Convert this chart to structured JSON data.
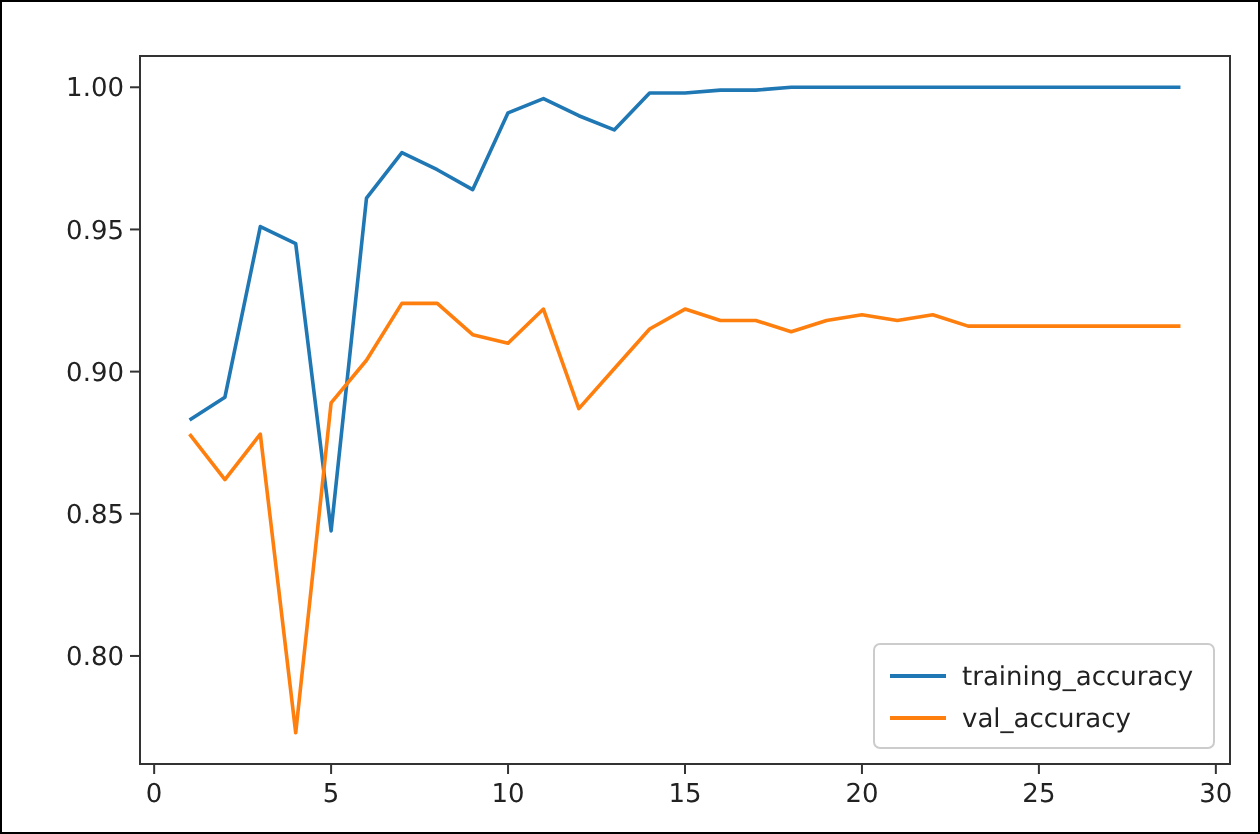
{
  "chart_data": {
    "type": "line",
    "x": [
      1,
      2,
      3,
      4,
      5,
      6,
      7,
      8,
      9,
      10,
      11,
      12,
      13,
      14,
      15,
      16,
      17,
      18,
      19,
      20,
      21,
      22,
      23,
      24,
      25,
      26,
      27,
      28,
      29
    ],
    "series": [
      {
        "name": "training_accuracy",
        "color": "#1f77b4",
        "values": [
          0.883,
          0.891,
          0.951,
          0.945,
          0.844,
          0.961,
          0.977,
          0.971,
          0.964,
          0.991,
          0.996,
          0.99,
          0.985,
          0.998,
          0.998,
          0.999,
          0.999,
          1.0,
          1.0,
          1.0,
          1.0,
          1.0,
          1.0,
          1.0,
          1.0,
          1.0,
          1.0,
          1.0,
          1.0
        ]
      },
      {
        "name": "val_accuracy",
        "color": "#ff7f0e",
        "values": [
          0.878,
          0.862,
          0.878,
          0.773,
          0.889,
          0.904,
          0.924,
          0.924,
          0.913,
          0.91,
          0.922,
          0.887,
          0.901,
          0.915,
          0.922,
          0.918,
          0.918,
          0.914,
          0.918,
          0.92,
          0.918,
          0.92,
          0.916,
          0.916,
          0.916,
          0.916,
          0.916,
          0.916,
          0.916
        ]
      }
    ],
    "xlim": [
      -0.4,
      30.4
    ],
    "xticks": [
      0,
      5,
      10,
      15,
      20,
      25,
      30
    ],
    "ylim": [
      0.762,
      1.011
    ],
    "yticks": [
      {
        "value": 0.8,
        "label": "0.80"
      },
      {
        "value": 0.85,
        "label": "0.85"
      },
      {
        "value": 0.9,
        "label": "0.90"
      },
      {
        "value": 0.95,
        "label": "0.95"
      },
      {
        "value": 1.0,
        "label": "1.00"
      }
    ],
    "legend": "bottom right",
    "grid": false
  }
}
